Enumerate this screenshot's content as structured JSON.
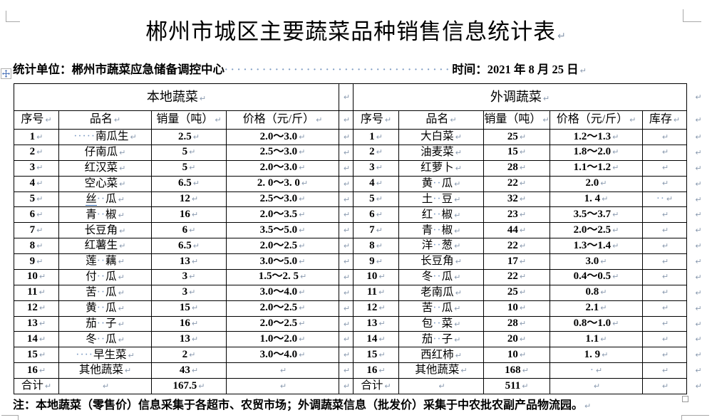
{
  "page": {
    "title": "郴州市城区主要蔬菜品种销售信息统计表"
  },
  "marks": {
    "pilcrow": "↵",
    "space_dot": "·"
  },
  "colors": {
    "border": "#000000",
    "paragraph_mark": "#8b9bb0",
    "space_mark": "#7e9cc4",
    "crop_mark": "#a8a8a8"
  },
  "info_line": {
    "unit_label": "统计单位：郴州市蔬菜应急储备调控中心",
    "leader_dots": "····································",
    "time_label": "时间：2021 年 8 月 25 日"
  },
  "table": {
    "left": {
      "group_header": "本地蔬菜",
      "columns": [
        "序号",
        "品名",
        "销量（吨）",
        "价格（元/斤）"
      ]
    },
    "right": {
      "group_header": "外调蔬菜",
      "columns": [
        "序号",
        "品名",
        "销量（吨）",
        "价格（元/斤）",
        "库存"
      ]
    },
    "rows": [
      {
        "l_no": "1",
        "l_name": "·····南瓜生",
        "l_sales": "2.5",
        "l_price": "2.0～3.0",
        "r_no": "1",
        "r_name": "大白菜",
        "r_sales": "25",
        "r_price": "1.2～1.3",
        "r_stock": ""
      },
      {
        "l_no": "2",
        "l_name": "仔南瓜",
        "l_sales": "5",
        "l_price": "2.5～3.0",
        "r_no": "2",
        "r_name": "油麦菜",
        "r_sales": "15",
        "r_price": "1.8～2.0",
        "r_stock": ""
      },
      {
        "l_no": "3",
        "l_name": "红汉菜",
        "l_sales": "5",
        "l_price": "2.0～3.0",
        "r_no": "3",
        "r_name": "红萝卜",
        "r_sales": "28",
        "r_price": "1.1～1.2",
        "r_stock": ""
      },
      {
        "l_no": "4",
        "l_name": "空心菜",
        "l_sales": "6.5",
        "l_price": "2. 0～3. 0",
        "r_no": "4",
        "r_name": "黄··瓜",
        "r_sales": "22",
        "r_price": "2.0",
        "r_stock": ""
      },
      {
        "l_no": "5",
        "l_name": "丝··瓜",
        "l_name_underline": "丝",
        "l_sales": "12",
        "l_price": "2.5～3.0",
        "r_no": "5",
        "r_name": "土··豆",
        "r_sales": "32",
        "r_price": "1. 4",
        "r_stock": "··"
      },
      {
        "l_no": "6",
        "l_name": "青··椒",
        "l_sales": "16",
        "l_price": "2.0～3.5",
        "r_no": "6",
        "r_name": "红··椒",
        "r_sales": "23",
        "r_price": "3.5～3.7",
        "r_stock": ""
      },
      {
        "l_no": "7",
        "l_name": "长豆角",
        "l_sales": "6",
        "l_price": "3.5～5.0",
        "r_no": "7",
        "r_name": "青··椒",
        "r_sales": "44",
        "r_price": "2.0～2.5",
        "r_stock": ""
      },
      {
        "l_no": "8",
        "l_name": "红薯生",
        "l_sales": "6.5",
        "l_price": "2.0～2.5",
        "r_no": "8",
        "r_name": "洋··葱",
        "r_sales": "22",
        "r_price": "1.3～1.4",
        "r_stock": ""
      },
      {
        "l_no": "9",
        "l_name": "莲··藕",
        "l_sales": "13",
        "l_price": "3.0～5.0",
        "r_no": "9",
        "r_name": "长豆角",
        "r_sales": "17",
        "r_price": "3.0",
        "r_stock": ""
      },
      {
        "l_no": "10",
        "l_name": "付··瓜",
        "l_sales": "3",
        "l_price": "1.5～2. 5",
        "r_no": "10",
        "r_name": "冬··瓜",
        "r_sales": "22",
        "r_price": "0.4～0.5",
        "r_stock": ""
      },
      {
        "l_no": "11",
        "l_name": "苦··瓜",
        "l_sales": "3",
        "l_price": "3.0～4.0",
        "r_no": "11",
        "r_name": "老南瓜",
        "r_sales": "25",
        "r_price": "0.8",
        "r_stock": ""
      },
      {
        "l_no": "12",
        "l_name": "黄··瓜",
        "l_sales": "15",
        "l_price": "2.0～2.5",
        "r_no": "12",
        "r_name": "苦··瓜",
        "r_sales": "10",
        "r_price": "2.1",
        "r_stock": ""
      },
      {
        "l_no": "13",
        "l_name": "茄··子",
        "l_sales": "16",
        "l_price": "2.0～2.5",
        "r_no": "13",
        "r_name": "包··菜",
        "r_sales": "28",
        "r_price": "0.8～1.0",
        "r_stock": ""
      },
      {
        "l_no": "14",
        "l_name": "冬··瓜",
        "l_sales": "13",
        "l_price": "1.0～2.0",
        "r_no": "14",
        "r_name": "茄··子",
        "r_sales": "20",
        "r_price": "1.1",
        "r_stock": ""
      },
      {
        "l_no": "15",
        "l_name": "····早生菜",
        "l_sales": "2",
        "l_price": "3.0～4.0",
        "r_no": "15",
        "r_name": "西红柿",
        "r_sales": "10",
        "r_price": "1. 9",
        "r_stock": ""
      },
      {
        "l_no": "16",
        "l_name": "其他蔬菜",
        "l_sales": "43",
        "l_price": "",
        "r_no": "16",
        "r_name": "其他蔬菜",
        "r_sales": "168",
        "r_price": "·",
        "r_stock": ""
      }
    ],
    "total_row": {
      "l_no": "合计",
      "l_name": "",
      "l_sales": "167.5",
      "l_price": "",
      "r_no": "合计",
      "r_name": "",
      "r_sales": "511",
      "r_price": "",
      "r_stock": ""
    }
  },
  "note": "注：本地蔬菜（零售价）信息采集于各超市、农贸市场；外调蔬菜信息（批发价）采集于中农批农副产品物流园。"
}
